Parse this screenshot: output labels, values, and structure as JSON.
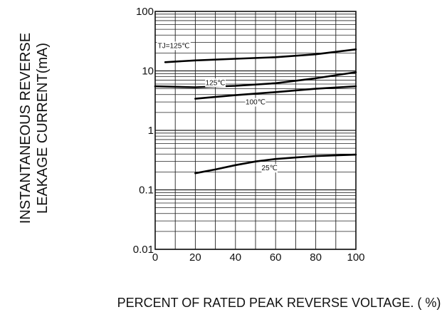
{
  "chart_data": {
    "type": "line",
    "title": "",
    "xlabel": "PERCENT OF RATED PEAK REVERSE VOLTAGE. ( %)",
    "ylabel_lines": [
      "INSTANTANEOUS REVERSE",
      "LEAKAGE CURRENT(mA)"
    ],
    "xlim": [
      0,
      100
    ],
    "ylim": [
      0.01,
      100
    ],
    "yscale": "log",
    "grid": true,
    "legend": "none",
    "x_ticks": [
      0,
      20,
      40,
      60,
      80,
      100
    ],
    "x_tick_labels": [
      "0",
      "20",
      "40",
      "60",
      "80",
      "100"
    ],
    "y_ticks": [
      0.01,
      0.1,
      1,
      10,
      100
    ],
    "y_tick_labels": [
      "0.01",
      "0.1",
      "1",
      "10",
      "100"
    ],
    "series": [
      {
        "name": "TJ=125℃",
        "points": [
          [
            5,
            14.0
          ],
          [
            20,
            15.0
          ],
          [
            40,
            16.0
          ],
          [
            60,
            17.0
          ],
          [
            80,
            19.0
          ],
          [
            100,
            23.0
          ]
        ]
      },
      {
        "name": "125℃",
        "points": [
          [
            0,
            5.5
          ],
          [
            20,
            5.3
          ],
          [
            40,
            5.6
          ],
          [
            60,
            6.2
          ],
          [
            80,
            7.5
          ],
          [
            100,
            9.5
          ]
        ]
      },
      {
        "name": "100℃",
        "points": [
          [
            20,
            3.4
          ],
          [
            40,
            3.9
          ],
          [
            60,
            4.4
          ],
          [
            80,
            5.0
          ],
          [
            100,
            5.5
          ]
        ]
      },
      {
        "name": "25℃",
        "points": [
          [
            20,
            0.19
          ],
          [
            30,
            0.22
          ],
          [
            40,
            0.26
          ],
          [
            50,
            0.3
          ],
          [
            60,
            0.33
          ],
          [
            70,
            0.35
          ],
          [
            80,
            0.37
          ],
          [
            90,
            0.38
          ],
          [
            100,
            0.39
          ]
        ]
      }
    ],
    "series_colors": [
      "#000000",
      "#000000",
      "#000000",
      "#000000"
    ]
  }
}
